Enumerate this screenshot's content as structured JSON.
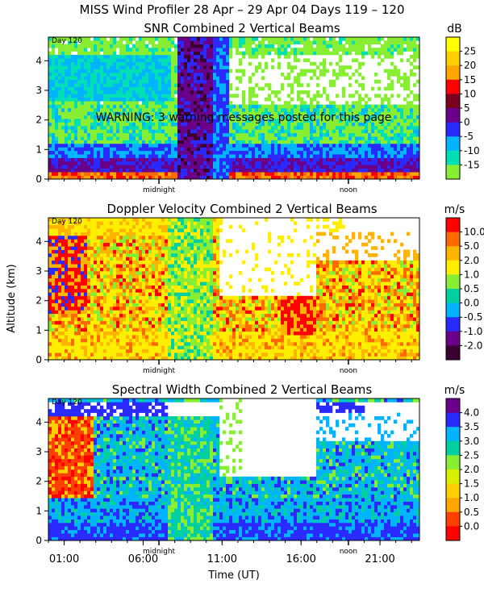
{
  "header": {
    "title": "MISS Wind Profiler  28 Apr – 29 Apr 04 Days 119 – 120"
  },
  "shared": {
    "ylabel": "Altitude (km)",
    "xlabel": "Time (UT)",
    "x_ticks": [
      "01:00",
      "06:00",
      "11:00",
      "16:00",
      "21:00"
    ],
    "x_tick_hours": [
      1,
      6,
      11,
      16,
      21
    ],
    "midnight_label": "midnight",
    "noon_label": "noon",
    "day_marker": "Day 120",
    "y_ticks": [
      "0",
      "1",
      "2",
      "3",
      "4"
    ]
  },
  "warning": "WARNING: 3 warning messages posted for this page",
  "chart_data": [
    {
      "type": "heatmap",
      "title": "SNR Combined 2 Vertical Beams",
      "units": "dB",
      "xlabel": "Time (UT)",
      "ylabel": "",
      "xlim": [
        0,
        23.5
      ],
      "ylim": [
        0,
        4.8
      ],
      "legend_labels": [
        "25",
        "20",
        "15",
        "10",
        "5",
        "0",
        "-5",
        "-10",
        "-15"
      ],
      "legend_colors": [
        "#ffff00",
        "#ffd000",
        "#ffa500",
        "#ff0000",
        "#7a0020",
        "#6a0088",
        "#2a2aff",
        "#00b4ff",
        "#00e0b4",
        "#88ee33"
      ]
    },
    {
      "type": "heatmap",
      "title": "Doppler Velocity Combined 2 Vertical Beams",
      "units": "m/s",
      "xlabel": "Time (UT)",
      "ylabel": "Altitude (km)",
      "xlim": [
        0,
        23.5
      ],
      "ylim": [
        0,
        4.8
      ],
      "legend_labels": [
        "10.0",
        "5.0",
        "2.0",
        "1.0",
        "0.5",
        "0.0",
        "-0.5",
        "-1.0",
        "-2.0"
      ],
      "legend_colors": [
        "#ff0000",
        "#ff6a00",
        "#ffb400",
        "#ffee00",
        "#88ee33",
        "#00d0a0",
        "#00b4ff",
        "#2a2aff",
        "#6a0088",
        "#3a0030"
      ]
    },
    {
      "type": "heatmap",
      "title": "Spectral Width Combined 2 Vertical Beams",
      "units": "m/s",
      "xlabel": "Time (UT)",
      "ylabel": "",
      "xlim": [
        0,
        23.5
      ],
      "ylim": [
        0,
        4.8
      ],
      "legend_labels": [
        "4.0",
        "3.5",
        "3.0",
        "2.5",
        "2.0",
        "1.5",
        "1.0",
        "0.5",
        "0.0"
      ],
      "legend_colors": [
        "#6a0088",
        "#2a2aff",
        "#00b4ff",
        "#00d0a0",
        "#88ee33",
        "#d8f000",
        "#ffd000",
        "#ffa500",
        "#ff4000",
        "#ff0000"
      ]
    }
  ]
}
